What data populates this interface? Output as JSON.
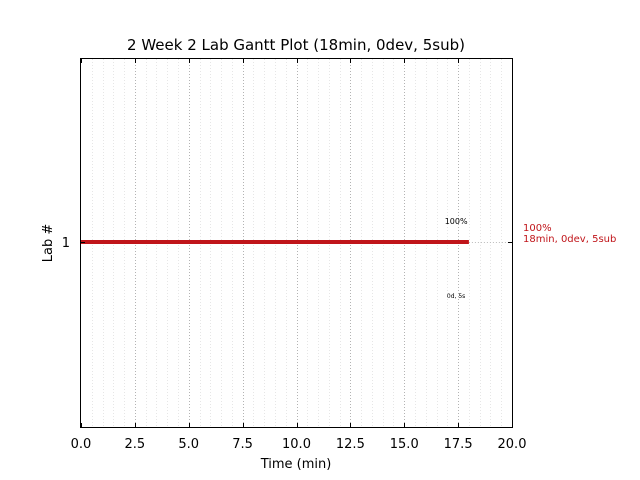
{
  "chart_data": {
    "type": "bar",
    "title": "2 Week 2 Lab Gantt Plot (18min, 0dev, 5sub)",
    "xlabel": "Time (min)",
    "ylabel": "Lab #",
    "xlim": [
      0,
      20
    ],
    "xticks": [
      "0.0",
      "2.5",
      "5.0",
      "7.5",
      "10.0",
      "12.5",
      "15.0",
      "17.5",
      "20.0"
    ],
    "grid": true,
    "categories": [
      "1"
    ],
    "bars": [
      {
        "lab": "1",
        "start": 0,
        "end": 18,
        "color": "#c0151a",
        "percent_label": "100%",
        "sub_label": "0d, 5s",
        "side_label_line1": "100%",
        "side_label_line2": "18min, 0dev, 5sub"
      }
    ]
  }
}
